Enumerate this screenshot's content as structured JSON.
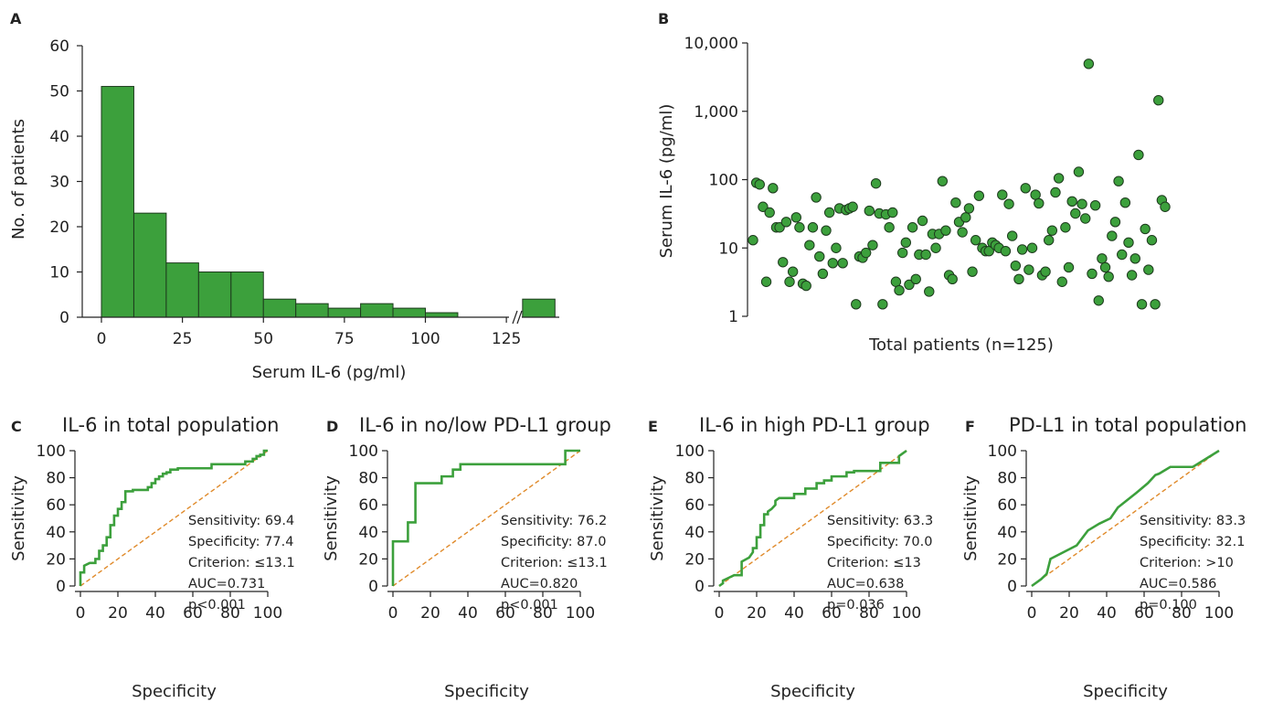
{
  "chart_data": [
    {
      "panel": "A",
      "type": "bar",
      "xlabel": "Serum IL-6 (pg/ml)",
      "ylabel": "No. of patients",
      "ylim": [
        0,
        60
      ],
      "xlim": [
        0,
        145
      ],
      "xticks": [
        "0",
        "25",
        "50",
        "75",
        "100",
        "125"
      ],
      "yticks": [
        "0",
        "10",
        "20",
        "30",
        "40",
        "50",
        "60"
      ],
      "bins": [
        {
          "from": 0,
          "to": 10,
          "count": 51
        },
        {
          "from": 10,
          "to": 20,
          "count": 23
        },
        {
          "from": 20,
          "to": 30,
          "count": 12
        },
        {
          "from": 30,
          "to": 40,
          "count": 10
        },
        {
          "from": 40,
          "to": 50,
          "count": 10
        },
        {
          "from": 50,
          "to": 60,
          "count": 4
        },
        {
          "from": 60,
          "to": 70,
          "count": 3
        },
        {
          "from": 70,
          "to": 80,
          "count": 2
        },
        {
          "from": 80,
          "to": 90,
          "count": 3
        },
        {
          "from": 90,
          "to": 100,
          "count": 2
        },
        {
          "from": 100,
          "to": 110,
          "count": 1
        },
        {
          "from": 130,
          "to": 140,
          "count": 4
        }
      ],
      "axis_break": true
    },
    {
      "panel": "B",
      "type": "scatter",
      "xlabel": "Total patients (n=125)",
      "ylabel": "Serum IL-6 (pg/ml)",
      "log_y": true,
      "ylim": [
        1,
        10000
      ],
      "yticks": [
        "1",
        "10",
        "100",
        "1,000",
        "10,000"
      ],
      "values": [
        13,
        90,
        85,
        40,
        3.2,
        33,
        75,
        20,
        20,
        6.2,
        24,
        3.2,
        4.5,
        28,
        20,
        3,
        2.8,
        11,
        20,
        55,
        7.5,
        4.2,
        18,
        33,
        6,
        10,
        38,
        6,
        36,
        38,
        40,
        1.5,
        7.5,
        7.2,
        8.5,
        35,
        11,
        88,
        32,
        1.5,
        31,
        20,
        33,
        3.2,
        2.4,
        8.5,
        12,
        2.9,
        20,
        3.5,
        8,
        25,
        8,
        2.3,
        16,
        10,
        16,
        95,
        18,
        4,
        3.5,
        46,
        24,
        17,
        28,
        38,
        4.5,
        13,
        58,
        10,
        9,
        9,
        12,
        11,
        10,
        60,
        9,
        44,
        15,
        5.5,
        3.5,
        9.5,
        75,
        4.8,
        10,
        60,
        45,
        4,
        4.5,
        13,
        18,
        65,
        105,
        3.2,
        20,
        5.2,
        48,
        32,
        130,
        44,
        27,
        4950,
        4.2,
        42,
        1.7,
        7,
        5.2,
        3.8,
        15,
        24,
        95,
        8,
        46,
        12,
        4,
        7,
        230,
        1.5,
        19,
        4.8,
        13,
        1.5,
        1450,
        50,
        40
      ]
    },
    {
      "panel": "C",
      "type": "line",
      "title": "IL-6 in total population",
      "xlabel": "Specificity",
      "ylabel": "Sensitivity",
      "xlim": [
        0,
        100
      ],
      "ylim": [
        0,
        100
      ],
      "ticks": [
        "0",
        "20",
        "40",
        "60",
        "80",
        "100"
      ],
      "ticks_x": [
        "0",
        "20",
        "40",
        "60",
        "80",
        "100"
      ],
      "x": [
        0,
        0,
        2,
        2,
        5,
        8,
        8,
        10,
        10,
        12,
        12,
        14,
        14,
        16,
        16,
        18,
        18,
        20,
        20,
        22,
        22,
        24,
        24,
        28,
        28,
        30,
        30,
        36,
        36,
        38,
        38,
        40,
        40,
        42,
        42,
        44,
        44,
        46,
        46,
        48,
        48,
        52,
        52,
        56,
        56,
        70,
        70,
        88,
        88,
        92,
        92,
        94,
        94,
        96,
        96,
        98,
        98,
        100
      ],
      "y": [
        0,
        10,
        10,
        15,
        17,
        17,
        20,
        20,
        26,
        26,
        30,
        30,
        36,
        36,
        45,
        45,
        52,
        52,
        57,
        57,
        62,
        62,
        70,
        70,
        71,
        71,
        71,
        71,
        73,
        73,
        76,
        76,
        79,
        79,
        81,
        81,
        83,
        83,
        84,
        84,
        86,
        86,
        87,
        87,
        87,
        87,
        90,
        90,
        92,
        92,
        94,
        94,
        96,
        96,
        97,
        97,
        100,
        100
      ],
      "stats": [
        "Sensitivity: 69.4",
        "Specificity: 77.4",
        "Criterion: ≤13.1",
        "AUC=0.731",
        "p<0.001"
      ]
    },
    {
      "panel": "D",
      "type": "line",
      "title": "IL-6 in no/low PD-L1 group",
      "xlabel": "Specificity",
      "ylabel": "Sensitivity",
      "xlim": [
        0,
        100
      ],
      "ylim": [
        0,
        100
      ],
      "ticks": [
        "0",
        "20",
        "40",
        "60",
        "80",
        "100"
      ],
      "ticks_x": [
        "0",
        "20",
        "40",
        "60",
        "80",
        "100"
      ],
      "x": [
        0,
        0,
        4,
        4,
        8,
        8,
        12,
        12,
        24,
        24,
        26,
        26,
        32,
        32,
        36,
        36,
        92,
        92,
        100,
        100
      ],
      "y": [
        0,
        33,
        33,
        33,
        33,
        47,
        47,
        76,
        76,
        76,
        76,
        81,
        81,
        86,
        86,
        90,
        90,
        100,
        100,
        100
      ],
      "stats": [
        "Sensitivity: 76.2",
        "Specificity: 87.0",
        "Criterion: ≤13.1",
        "AUC=0.820",
        "p<0.001"
      ]
    },
    {
      "panel": "E",
      "type": "line",
      "title": "IL-6 in high PD-L1 group",
      "xlabel": "Specificity",
      "ylabel": "Sensitivity",
      "xlim": [
        0,
        100
      ],
      "ylim": [
        0,
        100
      ],
      "ticks": [
        "0",
        "20",
        "40",
        "60",
        "80",
        "100"
      ],
      "ticks_x": [
        "0",
        "20",
        "40",
        "60",
        "80",
        "100"
      ],
      "x": [
        0,
        2,
        2,
        5,
        8,
        10,
        12,
        12,
        16,
        18,
        18,
        20,
        20,
        22,
        22,
        24,
        24,
        26,
        26,
        28,
        30,
        30,
        32,
        34,
        40,
        40,
        46,
        46,
        52,
        52,
        56,
        56,
        60,
        60,
        68,
        68,
        72,
        72,
        78,
        80,
        86,
        86,
        96,
        96,
        98,
        100
      ],
      "y": [
        0,
        2,
        4,
        6,
        8,
        8,
        8,
        18,
        21,
        25,
        28,
        28,
        36,
        36,
        45,
        45,
        53,
        53,
        55,
        57,
        60,
        63,
        65,
        65,
        65,
        68,
        68,
        72,
        72,
        76,
        76,
        78,
        78,
        81,
        81,
        84,
        84,
        85,
        85,
        85,
        85,
        91,
        91,
        96,
        98,
        100
      ],
      "stats": [
        "Sensitivity: 63.3",
        "Specificity: 70.0",
        "Criterion: ≤13",
        "AUC=0.638",
        "p=0.036"
      ]
    },
    {
      "panel": "F",
      "type": "line",
      "title": "PD-L1 in total population",
      "xlabel": "Specificity",
      "ylabel": "Sensitivity",
      "xlim": [
        0,
        100
      ],
      "ylim": [
        0,
        100
      ],
      "ticks": [
        "0",
        "20",
        "40",
        "60",
        "80",
        "100"
      ],
      "ticks_x": [
        "0",
        "20",
        "40",
        "60",
        "80",
        "100"
      ],
      "x": [
        0,
        5,
        8,
        10,
        24,
        30,
        36,
        42,
        46,
        56,
        62,
        66,
        68,
        74,
        86,
        100
      ],
      "y": [
        0,
        5,
        9,
        20,
        30,
        41,
        46,
        50,
        58,
        69,
        76,
        82,
        83,
        88,
        88,
        100
      ],
      "stats": [
        "Sensitivity: 83.3",
        "Specificity: 32.1",
        "Criterion: >10",
        "AUC=0.586",
        "p=0.100"
      ]
    }
  ]
}
